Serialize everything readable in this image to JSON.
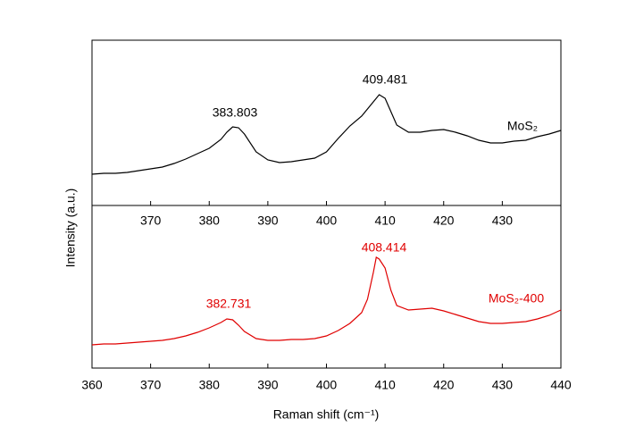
{
  "chart_data": [
    {
      "type": "line",
      "xlim": [
        360,
        440
      ],
      "xticks": [
        370,
        380,
        390,
        400,
        410,
        420,
        430
      ],
      "ylim": [
        0,
        185
      ],
      "ylabel": "Intensity (a.u.)",
      "x": [
        360,
        362,
        364,
        366,
        368,
        370,
        372,
        374,
        376,
        378,
        380,
        382,
        383,
        384,
        385,
        386,
        388,
        390,
        392,
        394,
        396,
        398,
        400,
        402,
        404,
        406,
        408,
        409,
        410,
        411,
        412,
        414,
        416,
        418,
        420,
        422,
        424,
        426,
        428,
        430,
        432,
        434,
        436,
        438,
        440
      ],
      "series": [
        {
          "name": "MoS₂",
          "color": "#000000",
          "values": [
            35,
            36,
            36,
            37,
            39,
            41,
            43,
            47,
            52,
            58,
            64,
            74,
            82,
            88,
            87,
            80,
            60,
            51,
            48,
            49,
            51,
            53,
            60,
            75,
            89,
            100,
            116,
            124,
            120,
            105,
            90,
            82,
            82,
            84,
            85,
            82,
            78,
            73,
            70,
            70,
            72,
            73,
            77,
            80,
            84
          ]
        }
      ],
      "annotations": [
        "383.803",
        "409.481"
      ]
    },
    {
      "type": "line",
      "xlim": [
        360,
        440
      ],
      "xticks": [
        360,
        370,
        380,
        390,
        400,
        410,
        420,
        430,
        440
      ],
      "ylim": [
        0,
        182
      ],
      "xlabel": "Raman shift (cm⁻¹)",
      "x": [
        360,
        362,
        364,
        366,
        368,
        370,
        372,
        374,
        376,
        378,
        380,
        382,
        383,
        384,
        385,
        386,
        388,
        390,
        392,
        394,
        396,
        398,
        400,
        402,
        404,
        406,
        407,
        408,
        408.5,
        409,
        410,
        411,
        412,
        414,
        416,
        418,
        420,
        422,
        424,
        426,
        428,
        430,
        432,
        434,
        436,
        438,
        440
      ],
      "series": [
        {
          "name": "MoS₂-400",
          "color": "#e00000",
          "values": [
            26,
            27,
            27,
            28,
            29,
            30,
            31,
            33,
            36,
            40,
            45,
            51,
            55,
            54,
            48,
            41,
            33,
            31,
            31,
            32,
            32,
            33,
            36,
            42,
            50,
            62,
            77,
            107,
            124,
            122,
            112,
            87,
            70,
            65,
            66,
            67,
            64,
            60,
            56,
            52,
            50,
            50,
            51,
            52,
            55,
            59,
            65
          ]
        }
      ],
      "annotations": [
        "382.731",
        "408.414"
      ]
    }
  ]
}
